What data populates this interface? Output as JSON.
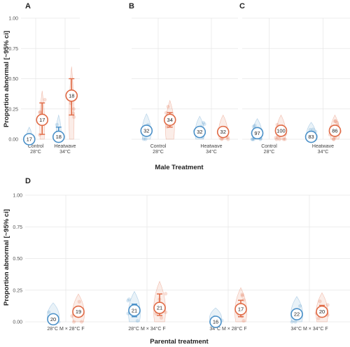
{
  "colors": {
    "male": "#4a90c8",
    "female": "#e06a45",
    "grid": "#e6e6e6"
  },
  "y_axis_label": "Proportion abnormal [~95% ci]",
  "top_x_axis_label": "Male Treatment",
  "bottom_x_axis_label": "Parental treatment",
  "y_ticks": [
    "0.00",
    "0.25",
    "0.50",
    "0.75",
    "1.00"
  ],
  "chart_data": [
    {
      "type": "scatter",
      "panel": "A",
      "categories": [
        "Control\n28°C",
        "Heatwave\n34°C"
      ],
      "ylim": [
        0,
        1
      ],
      "series": [
        {
          "group": "blue",
          "n": [
            17,
            18
          ],
          "estimate": [
            0.0,
            0.02
          ],
          "ci_low": [
            0.0,
            0.0
          ],
          "ci_high": [
            0.0,
            0.1
          ]
        },
        {
          "group": "orange",
          "n": [
            17,
            18
          ],
          "estimate": [
            0.16,
            0.36
          ],
          "ci_low": [
            0.04,
            0.2
          ],
          "ci_high": [
            0.3,
            0.5
          ]
        }
      ]
    },
    {
      "type": "scatter",
      "panel": "B",
      "categories": [
        "Control\n28°C",
        "Heatwave\n34°C"
      ],
      "ylim": [
        0,
        1
      ],
      "series": [
        {
          "group": "blue",
          "n": [
            32,
            32
          ],
          "estimate": [
            0.07,
            0.06
          ],
          "ci_low": [
            0.04,
            0.03
          ],
          "ci_high": [
            0.11,
            0.09
          ]
        },
        {
          "group": "orange",
          "n": [
            34,
            32
          ],
          "estimate": [
            0.16,
            0.06
          ],
          "ci_low": [
            0.1,
            0.03
          ],
          "ci_high": [
            0.22,
            0.1
          ]
        }
      ]
    },
    {
      "type": "scatter",
      "panel": "C",
      "categories": [
        "Control\n28°C",
        "Heatwave\n34°C"
      ],
      "ylim": [
        0,
        1
      ],
      "series": [
        {
          "group": "blue",
          "n": [
            97,
            83
          ],
          "estimate": [
            0.05,
            0.02
          ],
          "ci_low": [
            0.03,
            0.01
          ],
          "ci_high": [
            0.07,
            0.04
          ]
        },
        {
          "group": "orange",
          "n": [
            100,
            86
          ],
          "estimate": [
            0.07,
            0.07
          ],
          "ci_low": [
            0.05,
            0.05
          ],
          "ci_high": [
            0.1,
            0.1
          ]
        }
      ]
    },
    {
      "type": "scatter",
      "panel": "D",
      "categories": [
        "28°C M × 28°C F",
        "28°C M × 34°C F",
        "34°C M × 28°C F",
        "34°C M × 34°C F"
      ],
      "ylim": [
        0,
        1
      ],
      "series": [
        {
          "group": "blue",
          "n": [
            20,
            21,
            16,
            22
          ],
          "estimate": [
            0.02,
            0.09,
            0.0,
            0.06
          ],
          "ci_low": [
            0.0,
            0.04,
            0.0,
            0.02
          ],
          "ci_high": [
            0.05,
            0.14,
            0.01,
            0.1
          ]
        },
        {
          "group": "orange",
          "n": [
            19,
            21,
            17,
            20
          ],
          "estimate": [
            0.08,
            0.11,
            0.1,
            0.08
          ],
          "ci_low": [
            0.04,
            0.05,
            0.04,
            0.04
          ],
          "ci_high": [
            0.12,
            0.22,
            0.17,
            0.13
          ]
        }
      ]
    }
  ]
}
